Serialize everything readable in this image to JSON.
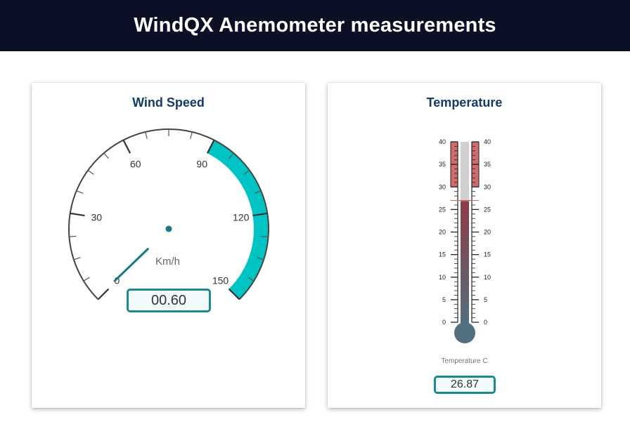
{
  "header": {
    "title": "WindQX Anemometer measurements"
  },
  "wind_speed": {
    "title": "Wind Speed",
    "unit": "Km/h",
    "value": 0.6,
    "display_value": "00.60",
    "min": 0,
    "max": 150,
    "major_ticks": [
      0,
      30,
      60,
      90,
      120,
      150
    ],
    "minor_per_major": 3,
    "highlight_band": {
      "from": 90,
      "to": 150,
      "color": "#00c4c4"
    },
    "needle_color": "#167a7f"
  },
  "temperature": {
    "title": "Temperature",
    "caption": "Temperature C",
    "value": 26.87,
    "display_value": "26.87",
    "min": 0,
    "max": 40,
    "major_ticks": [
      0,
      5,
      10,
      15,
      20,
      25,
      30,
      35,
      40
    ],
    "alarm_from": 30,
    "alarm_color": "#d26b6b",
    "marker_value": 27,
    "mercury_color_top": "#8e3a45",
    "mercury_color_bottom": "#52707f"
  }
}
